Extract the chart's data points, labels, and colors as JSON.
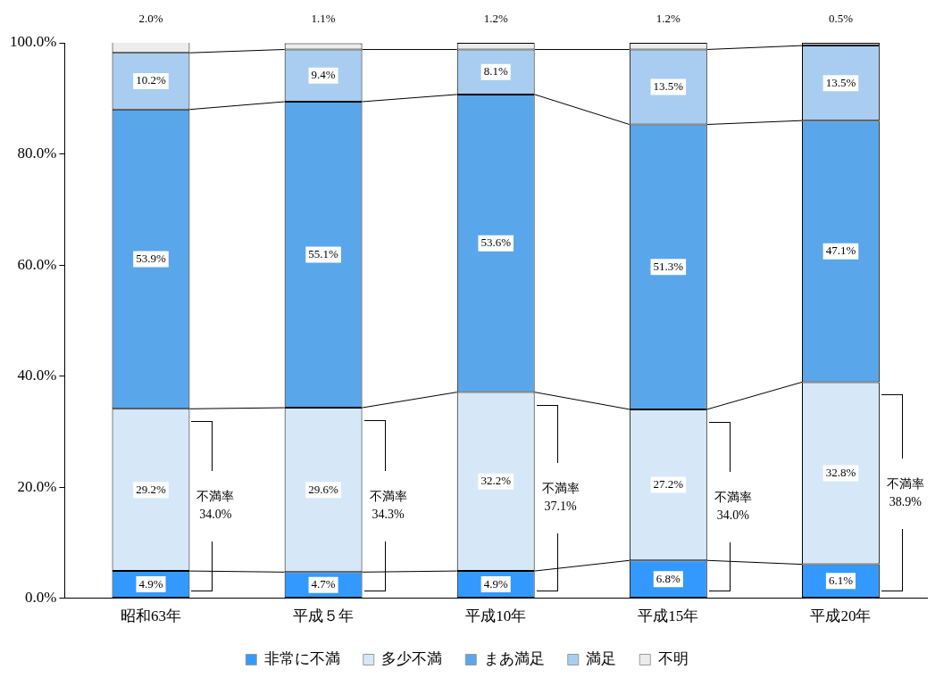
{
  "chart_data": {
    "type": "bar",
    "stacked": true,
    "categories": [
      "昭和63年",
      "平成５年",
      "平成10年",
      "平成15年",
      "平成20年"
    ],
    "series": [
      {
        "name": "非常に不満",
        "color": "#3399ff",
        "values": [
          4.9,
          4.7,
          4.9,
          6.8,
          6.1
        ],
        "value_labels": [
          "4.9%",
          "4.7%",
          "4.9%",
          "6.8%",
          "6.1%"
        ]
      },
      {
        "name": "多少不満",
        "color": "#d6e8f8",
        "values": [
          29.2,
          29.6,
          32.2,
          27.2,
          32.8
        ],
        "value_labels": [
          "29.2%",
          "29.6%",
          "32.2%",
          "27.2%",
          "32.8%"
        ]
      },
      {
        "name": "まあ満足",
        "color": "#5aa6ea",
        "values": [
          53.9,
          55.1,
          53.6,
          51.3,
          47.1
        ],
        "value_labels": [
          "53.9%",
          "55.1%",
          "53.6%",
          "51.3%",
          "47.1%"
        ]
      },
      {
        "name": "満足",
        "color": "#a8cdf0",
        "values": [
          10.2,
          9.4,
          8.1,
          13.5,
          13.5
        ],
        "value_labels": [
          "10.2%",
          "9.4%",
          "8.1%",
          "13.5%",
          "13.5%"
        ]
      },
      {
        "name": "不明",
        "color": "#ececec",
        "values": [
          2.0,
          1.1,
          1.2,
          1.2,
          0.5
        ],
        "value_labels": [
          "2.0%",
          "1.1%",
          "1.2%",
          "1.2%",
          "0.5%"
        ]
      }
    ],
    "ylim": [
      0,
      100
    ],
    "yticks": [
      {
        "value": 0,
        "label": "0.0%"
      },
      {
        "value": 20,
        "label": "20.0%"
      },
      {
        "value": 40,
        "label": "40.0%"
      },
      {
        "value": 60,
        "label": "60.0%"
      },
      {
        "value": 80,
        "label": "80.0%"
      },
      {
        "value": 100,
        "label": "100.0%"
      }
    ],
    "grid": false,
    "legend": "bottom",
    "annotations": [
      "不満率 34.0%",
      "不満率 34.3%",
      "不満率 37.1%",
      "不満率 34.0%",
      "不満率 38.9%"
    ]
  }
}
